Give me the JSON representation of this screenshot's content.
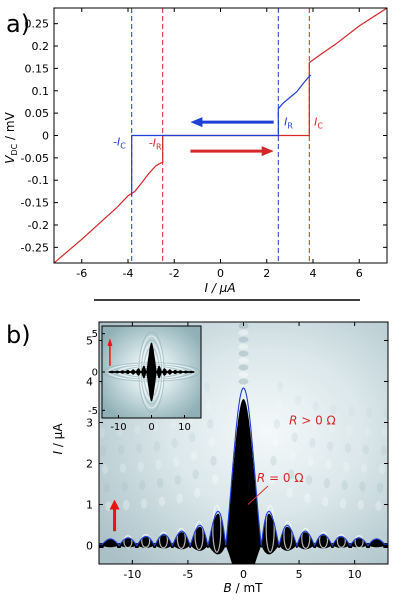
{
  "figure": {
    "panel_a_label": "a)",
    "panel_b_label": "b)"
  },
  "chart_data": [
    {
      "type": "line",
      "panel": "a",
      "xlabel": "I / μA",
      "ylabel": "V_DC / mV",
      "xlim": [
        -7.2,
        7.2
      ],
      "ylim": [
        -0.285,
        0.285
      ],
      "xticks": [
        -6,
        -4,
        -2,
        0,
        2,
        4,
        6
      ],
      "yticks": [
        -0.25,
        -0.2,
        -0.15,
        -0.1,
        -0.05,
        0,
        0.05,
        0.1,
        0.15,
        0.2,
        0.25
      ],
      "ytick_labels": [
        "-0.25",
        "-0.2",
        "-0.15",
        "-0.1",
        "-0.05",
        "0",
        "0.05",
        "0.1",
        "0.15",
        "0.2",
        "0.25"
      ],
      "grid": false,
      "series": [
        {
          "color": "#d62728",
          "x": [
            -7.2,
            -6,
            -5,
            -4.5,
            -4,
            -3.7,
            -3.4,
            -3.1,
            -2.8,
            -2.6,
            -2.5,
            -2.5,
            0,
            2.5,
            3.84,
            3.84,
            4.3,
            5,
            6,
            7.2
          ],
          "y": [
            -0.285,
            -0.232,
            -0.185,
            -0.162,
            -0.135,
            -0.125,
            -0.105,
            -0.085,
            -0.068,
            -0.062,
            -0.06,
            0,
            0,
            0,
            0,
            0.163,
            0.18,
            0.205,
            0.245,
            0.285
          ]
        },
        {
          "color": "#1f3fd6",
          "x": [
            -3.84,
            -3.84,
            0,
            2.5,
            2.5,
            2.7,
            3,
            3.3,
            3.6,
            3.8,
            3.9
          ],
          "y": [
            -0.135,
            0,
            0,
            0,
            0.06,
            0.072,
            0.085,
            0.098,
            0.118,
            0.13,
            0.135
          ]
        }
      ],
      "vlines": [
        {
          "x": -3.84,
          "color": "#1f3fd6"
        },
        {
          "x": -2.5,
          "color": "#d62728"
        },
        {
          "x": 2.5,
          "color": "#1f3fd6"
        },
        {
          "x": 3.84,
          "color": "#d62728"
        }
      ],
      "annotations": [
        {
          "text": "-I",
          "sub": "C",
          "color": "#1f3fd6",
          "x": -4.65,
          "y": -0.022
        },
        {
          "text": "-I",
          "sub": "R",
          "color": "#d62728",
          "x": -3.1,
          "y": -0.025
        },
        {
          "text": "I",
          "sub": "R",
          "color": "#1f3fd6",
          "x": 2.75,
          "y": 0.022
        },
        {
          "text": "I",
          "sub": "C",
          "color": "#d62728",
          "x": 4.05,
          "y": 0.022
        }
      ],
      "arrows": [
        {
          "color": "#1f3fd6",
          "x_from": 2.3,
          "x_to": -1.3,
          "y": 0.03
        },
        {
          "color": "#d62728",
          "x_from": -1.3,
          "x_to": 2.3,
          "y": -0.035
        }
      ]
    },
    {
      "type": "heatmap",
      "panel": "b",
      "xlabel": "B / mT",
      "ylabel": "I / μA",
      "xlim": [
        -13,
        13
      ],
      "ylim": [
        -0.45,
        5.45
      ],
      "xticks": [
        -10,
        -5,
        0,
        5,
        10
      ],
      "yticks": [
        0,
        1,
        2,
        3,
        4,
        5
      ],
      "overlay_curve": {
        "color": "#1f3fd6",
        "Ic0": 3.84,
        "period_mT": 1.6,
        "description": "Fraunhofer fit"
      },
      "labels": [
        {
          "text": "R > 0 Ω",
          "color": "#d62728",
          "x": 6.2,
          "y": 2.95
        },
        {
          "text": "R = 0 Ω",
          "color": "#d62728",
          "x": 3.3,
          "y": 1.55
        }
      ],
      "sweep_arrow_color": "#ee1111",
      "inset": {
        "xticks": [
          -10,
          0,
          10
        ],
        "yticks": [
          -5,
          0,
          5
        ],
        "xlim": [
          -15,
          15
        ],
        "ylim": [
          -6,
          6
        ]
      }
    }
  ]
}
